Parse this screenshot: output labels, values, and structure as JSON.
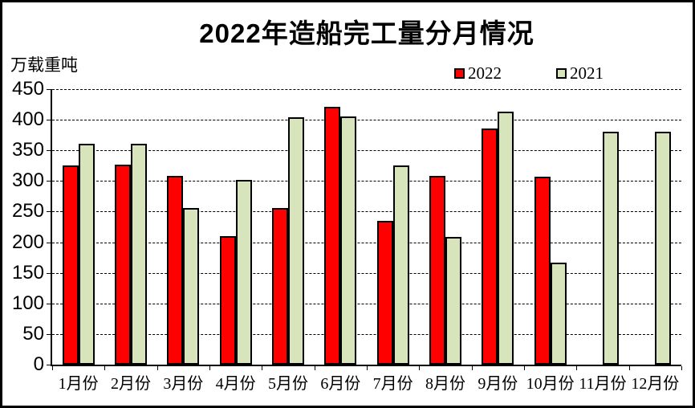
{
  "chart_data": {
    "type": "bar",
    "title": "2022年造船完工量分月情况",
    "ylabel": "万载重吨",
    "xlabel": "",
    "categories": [
      "1月份",
      "2月份",
      "3月份",
      "4月份",
      "5月份",
      "6月份",
      "7月份",
      "8月份",
      "9月份",
      "10月份",
      "11月份",
      "12月份"
    ],
    "series": [
      {
        "name": "2022",
        "color": "#FF0000",
        "values": [
          326,
          327,
          308,
          210,
          256,
          421,
          235,
          308,
          386,
          307,
          null,
          null
        ]
      },
      {
        "name": "2021",
        "color": "#D8E4BC",
        "values": [
          361,
          361,
          256,
          302,
          404,
          405,
          326,
          208,
          413,
          167,
          380,
          381
        ]
      }
    ],
    "ylim": [
      0,
      450
    ],
    "ytick_step": 50,
    "grid": "horizontal-dashed",
    "legend_position": "top-right",
    "bar_border_color": "#000000"
  }
}
